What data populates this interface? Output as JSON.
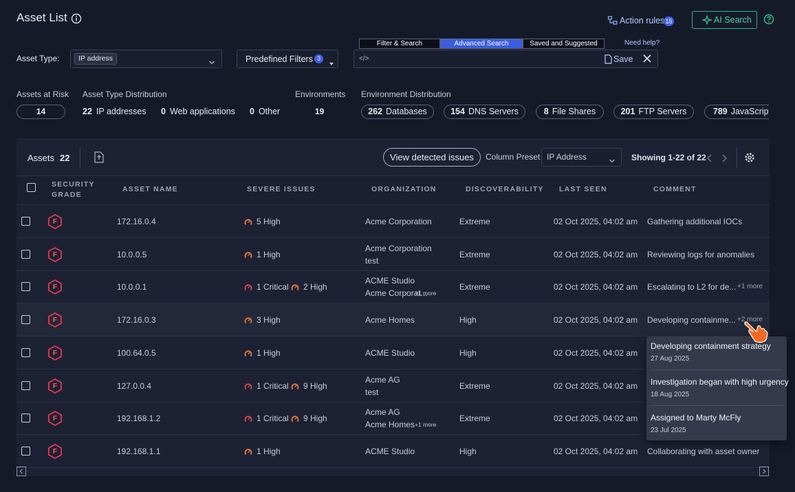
{
  "header": {
    "title": "Asset List",
    "action_rules": "Action rules",
    "action_rules_count": "15",
    "ai_search": "AI Search"
  },
  "filters": {
    "asset_type_label": "Asset Type:",
    "asset_type_value": "IP address",
    "predefined": "Predefined Filters",
    "predefined_count": "3",
    "tabs": [
      "Filter & Search",
      "Advanced Search",
      "Saved and Suggested"
    ],
    "active_tab": 1,
    "need_help": "Need help?",
    "query_placeholder": "</>",
    "save": "Save"
  },
  "stats": {
    "assets_at_risk": {
      "label": "Assets at Risk",
      "value": "14"
    },
    "type_distribution": {
      "label": "Asset Type Distribution",
      "items": [
        {
          "count": "22",
          "label": "IP addresses"
        },
        {
          "count": "0",
          "label": "Web applications"
        },
        {
          "count": "0",
          "label": "Other"
        }
      ]
    },
    "environments": {
      "label": "Environments",
      "value": "19"
    },
    "environment_distribution": {
      "label": "Environment Distribution",
      "items": [
        {
          "count": "262",
          "label": "Databases"
        },
        {
          "count": "154",
          "label": "DNS Servers"
        },
        {
          "count": "8",
          "label": "File Shares"
        },
        {
          "count": "201",
          "label": "FTP Servers"
        },
        {
          "count": "789",
          "label": "JavaScript"
        }
      ]
    }
  },
  "table": {
    "assets_label": "Assets",
    "assets_count": "22",
    "view_issues": "View detected issues",
    "column_preset_label": "Column Preset",
    "column_preset_value": "IP Address",
    "showing": "Showing 1-22 of 22",
    "columns": [
      "SECURITY GRADE",
      "ASSET NAME",
      "SEVERE ISSUES",
      "ORGANIZATION",
      "DISCOVERABILITY",
      "LAST SEEN",
      "COMMENT"
    ],
    "rows": [
      {
        "grade": "F",
        "name": "172.16.0.4",
        "issues": [
          {
            "text": "5 High",
            "color": "#f07a3a"
          }
        ],
        "organization": [
          "Acme Corporation"
        ],
        "discoverability": "Extreme",
        "last_seen": "02 Oct 2025, 04:02 am",
        "comment": "Gathering additional IOCs"
      },
      {
        "grade": "F",
        "name": "10.0.0.5",
        "issues": [
          {
            "text": "1 High",
            "color": "#f07a3a"
          }
        ],
        "organization": [
          "Acme Corporation",
          "test"
        ],
        "discoverability": "Extreme",
        "last_seen": "02 Oct 2025, 04:02 am",
        "comment": "Reviewing logs for anomalies"
      },
      {
        "grade": "F",
        "name": "10.0.0.1",
        "issues": [
          {
            "text": "1 Critical",
            "color": "#e8434f"
          },
          {
            "text": "2 High",
            "color": "#f07a3a"
          }
        ],
        "organization": [
          "ACME Studio",
          "Acme Corporat..."
        ],
        "organization_more": "+1 more",
        "discoverability": "Extreme",
        "last_seen": "02 Oct 2025, 04:02 am",
        "comment": "Escalating to L2 for de...",
        "comment_more": "+1 more"
      },
      {
        "grade": "F",
        "name": "172.16.0.3",
        "issues": [
          {
            "text": "3 High",
            "color": "#f07a3a"
          }
        ],
        "organization": [
          "Acme Homes"
        ],
        "discoverability": "High",
        "last_seen": "02 Oct 2025, 04:02 am",
        "comment": "Developing containme...",
        "comment_more": "+2 more"
      },
      {
        "grade": "F",
        "name": "100.64.0.5",
        "issues": [
          {
            "text": "1 High",
            "color": "#f07a3a"
          }
        ],
        "organization": [
          "ACME Studio"
        ],
        "discoverability": "High",
        "last_seen": "02 Oct 2025, 04:02 am"
      },
      {
        "grade": "F",
        "name": "127.0.0.4",
        "issues": [
          {
            "text": "1 Critical",
            "color": "#e8434f"
          },
          {
            "text": "9 High",
            "color": "#f07a3a"
          }
        ],
        "organization": [
          "Acme AG",
          "test"
        ],
        "discoverability": "Extreme",
        "last_seen": "02 Oct 2025, 04:02 am"
      },
      {
        "grade": "F",
        "name": "192.168.1.2",
        "issues": [
          {
            "text": "1 Critical",
            "color": "#e8434f"
          },
          {
            "text": "9 High",
            "color": "#f07a3a"
          }
        ],
        "organization": [
          "Acme AG",
          "Acme Homes"
        ],
        "organization_more": "+1 more",
        "discoverability": "Extreme",
        "last_seen": "02 Oct 2025, 04:02 am"
      },
      {
        "grade": "F",
        "name": "192.168.1.1",
        "issues": [
          {
            "text": "1 High",
            "color": "#f07a3a"
          }
        ],
        "organization": [
          "ACME Studio"
        ],
        "discoverability": "High",
        "last_seen": "02 Oct 2025, 04:02 am",
        "comment": "Collaborating with asset owner"
      }
    ]
  },
  "tooltip": {
    "items": [
      {
        "text": "Developing containment strategy",
        "date": "27 Aug 2025"
      },
      {
        "text": "Investigation began with high urgency",
        "date": "18 Aug 2025"
      },
      {
        "text": "Assigned to Marty McFly",
        "date": "23 Jul 2025"
      }
    ]
  }
}
